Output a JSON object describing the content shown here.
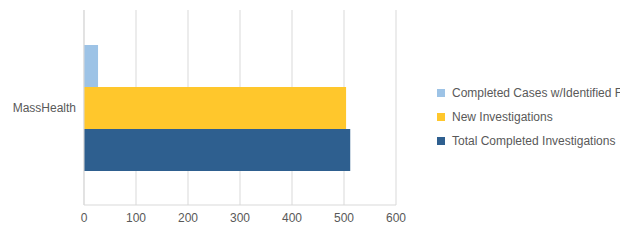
{
  "chart_data": {
    "type": "bar",
    "orientation": "horizontal",
    "categories": [
      "MassHealth"
    ],
    "series": [
      {
        "name": "Completed Cases w/Identified Fraud",
        "color": "#9dc3e6",
        "values": [
          27
        ]
      },
      {
        "name": "New Investigations",
        "color": "#ffc72c",
        "values": [
          504
        ]
      },
      {
        "name": "Total Completed Investigations",
        "color": "#2e5f8f",
        "values": [
          512
        ]
      }
    ],
    "xlim": [
      0,
      600
    ],
    "xticks": [
      0,
      100,
      200,
      300,
      400,
      500,
      600
    ],
    "grid": true,
    "legend": "right"
  }
}
